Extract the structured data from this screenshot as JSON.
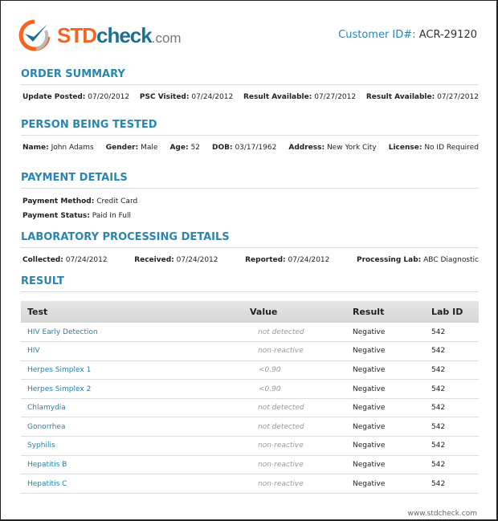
{
  "header": {
    "logo_text": {
      "std": "STD",
      "check": "check",
      "com": ".com"
    },
    "customer_id_label": "Customer ID#:",
    "customer_id": "ACR-29120"
  },
  "order_summary": {
    "title": "ORDER SUMMARY",
    "fields": [
      {
        "label": "Update Posted:",
        "value": "07/20/2012"
      },
      {
        "label": "PSC Visited:",
        "value": "07/24/2012"
      },
      {
        "label": "Result Available:",
        "value": "07/27/2012"
      },
      {
        "label": "Result Available:",
        "value": "07/27/2012"
      }
    ]
  },
  "person": {
    "title": "PERSON BEING TESTED",
    "fields": [
      {
        "label": "Name:",
        "value": "John Adams"
      },
      {
        "label": "Gender:",
        "value": "Male"
      },
      {
        "label": "Age:",
        "value": "52"
      },
      {
        "label": "DOB:",
        "value": "03/17/1962"
      },
      {
        "label": "Address:",
        "value": "New York City"
      },
      {
        "label": "License:",
        "value": "No ID Required"
      }
    ]
  },
  "payment": {
    "title": "PAYMENT DETAILS",
    "fields": [
      {
        "label": "Payment Method:",
        "value": "Credit Card"
      },
      {
        "label": "Payment Status:",
        "value": "Paid In Full"
      }
    ]
  },
  "lab": {
    "title": "LABORATORY PROCESSING DETAILS",
    "fields": [
      {
        "label": "Collected:",
        "value": "07/24/2012"
      },
      {
        "label": "Received:",
        "value": "07/24/2012"
      },
      {
        "label": "Reported:",
        "value": "07/24/2012"
      },
      {
        "label": "Processing Lab:",
        "value": "ABC Diagnostic"
      }
    ]
  },
  "result": {
    "title": "RESULT",
    "columns": [
      "Test",
      "Value",
      "Result",
      "Lab ID"
    ],
    "rows": [
      [
        "HIV Early Detection",
        "not detected",
        "Negative",
        "542"
      ],
      [
        "HIV",
        "non-reactive",
        "Negative",
        "542"
      ],
      [
        "Herpes Simplex 1",
        "<0.90",
        "Negative",
        "542"
      ],
      [
        "Herpes Simplex 2",
        "<0.90",
        "Negative",
        "542"
      ],
      [
        "Chlamydia",
        "not detected",
        "Negative",
        "542"
      ],
      [
        "Gonorrhea",
        "not detected",
        "Negative",
        "542"
      ],
      [
        "Syphilis",
        "non-reactive",
        "Negative",
        "542"
      ],
      [
        "Hepatitis B",
        "non-reactive",
        "Negative",
        "542"
      ],
      [
        "Hepatitis C",
        "non-reactive",
        "Negative",
        "542"
      ]
    ]
  },
  "footer": "www.stdcheck.com",
  "colors": {
    "accent": "#2a86b0",
    "brand_orange": "#f26522"
  }
}
